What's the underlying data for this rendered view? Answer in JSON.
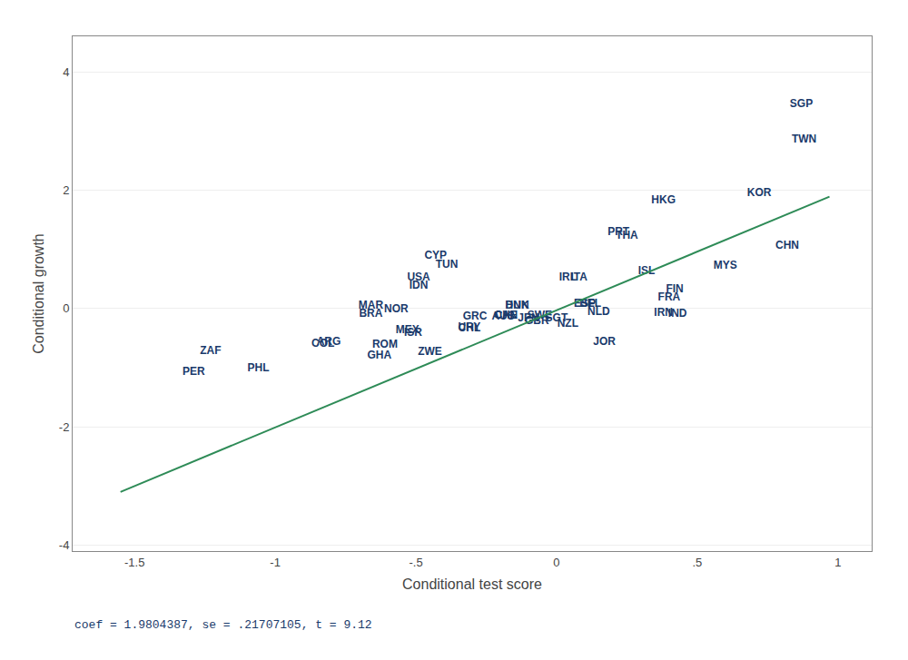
{
  "chart_data": {
    "type": "scatter",
    "xlabel": "Conditional test score",
    "ylabel": "Conditional growth",
    "annotation": "coef = 1.9804387, se = .21707105, t = 9.12",
    "xlim": [
      -1.72,
      1.12
    ],
    "ylim": [
      -4.1,
      4.6
    ],
    "xticks": [
      -1.5,
      -1,
      {
        "value": -0.5,
        "label": "-.5"
      },
      0,
      {
        "value": 0.5,
        "label": ".5"
      },
      1
    ],
    "yticks": [
      -4,
      -2,
      0,
      2,
      4
    ],
    "grid": "y",
    "series": [
      {
        "type": "scatter",
        "marker": "text",
        "color": "#1a3a6b",
        "labels": [
          "SGP",
          "TWN",
          "KOR",
          "HKG",
          "CHN",
          "MYS",
          "THA",
          "PRT",
          "ISL",
          "IRL",
          "ITA",
          "FIN",
          "FRA",
          "IRN",
          "IND",
          "NLD",
          "ESP",
          "BEL",
          "CYP",
          "TUN",
          "USA",
          "IDN",
          "NOR",
          "DNK",
          "HUN",
          "SWE",
          "SGT",
          "NZL",
          "GBR",
          "AUS",
          "CHE",
          "JPN",
          "CAN",
          "GRC",
          "MEX",
          "ISR",
          "URY",
          "CHL",
          "JOR",
          "ROM",
          "GHA",
          "ZWE",
          "MAR",
          "BRA",
          "ARG",
          "COL",
          "ZAF",
          "PER",
          "PHL"
        ],
        "x": [
          0.87,
          0.88,
          0.72,
          0.38,
          0.82,
          0.6,
          0.25,
          0.22,
          0.32,
          0.04,
          0.08,
          0.42,
          0.4,
          0.38,
          0.43,
          0.15,
          0.1,
          0.12,
          -0.43,
          -0.39,
          -0.49,
          -0.49,
          -0.57,
          -0.14,
          -0.14,
          -0.06,
          0.0,
          0.04,
          -0.07,
          -0.19,
          -0.18,
          -0.1,
          -0.18,
          -0.29,
          -0.53,
          -0.51,
          -0.31,
          -0.31,
          0.17,
          -0.61,
          -0.63,
          -0.45,
          -0.66,
          -0.66,
          -0.81,
          -0.83,
          -1.23,
          -1.29,
          -1.06
        ],
        "values": [
          3.45,
          2.85,
          1.95,
          1.82,
          1.05,
          0.72,
          1.22,
          1.28,
          0.62,
          0.52,
          0.52,
          0.32,
          0.18,
          -0.08,
          -0.1,
          -0.07,
          0.08,
          0.08,
          0.88,
          0.73,
          0.52,
          0.38,
          -0.02,
          0.05,
          0.05,
          -0.12,
          -0.17,
          -0.27,
          -0.22,
          -0.14,
          -0.12,
          -0.17,
          -0.12,
          -0.14,
          -0.37,
          -0.42,
          -0.32,
          -0.34,
          -0.57,
          -0.62,
          -0.8,
          -0.74,
          0.04,
          -0.1,
          -0.57,
          -0.6,
          -0.72,
          -1.07,
          -1.02
        ]
      },
      {
        "type": "line",
        "color": "#2e8b57",
        "x": [
          -1.55,
          0.97
        ],
        "values": [
          -3.099679985,
          1.891025539
        ]
      }
    ]
  }
}
